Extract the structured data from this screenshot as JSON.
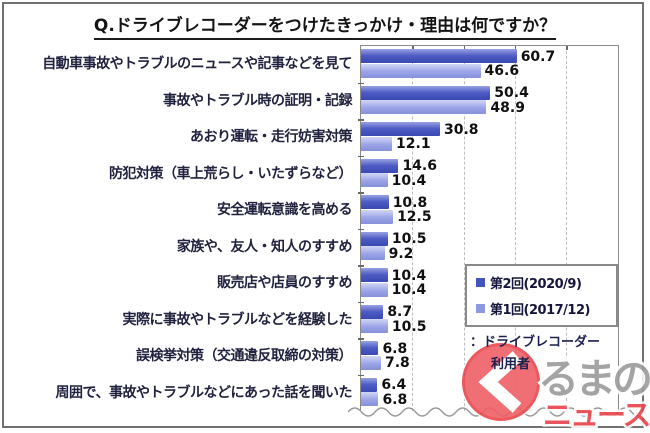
{
  "title": "Q.ドライブレコーダーをつけたきっかけ・理由は何ですか？",
  "chart_data": {
    "type": "bar",
    "orientation": "horizontal",
    "title": "Q.ドライブレコーダーをつけたきっかけ・理由は何ですか？",
    "categories": [
      "自動車事故やトラブルのニュースや記事などを見て",
      "事故やトラブル時の証明・記録",
      "あおり運転・走行妨害対策",
      "防犯対策（車上荒らし・いたずらなど）",
      "安全運転意識を高める",
      "家族や、友人・知人のすすめ",
      "販売店や店員のすすめ",
      "実際に事故やトラブルなどを経験した",
      "誤検挙対策（交通違反取締の対策）",
      "周囲で、事故やトラブルなどにあった話を聞いた"
    ],
    "series": [
      {
        "name": "第2回(2020/9)",
        "color": "#4355bd",
        "values": [
          60.7,
          50.4,
          30.8,
          14.6,
          10.8,
          10.5,
          10.4,
          8.7,
          6.8,
          6.4
        ]
      },
      {
        "name": "第1回(2017/12)",
        "color": "#8e99e0",
        "values": [
          46.6,
          48.9,
          12.1,
          10.4,
          12.5,
          9.2,
          10.4,
          10.5,
          7.8,
          6.8
        ]
      }
    ],
    "xlim": [
      0,
      100
    ],
    "gridlines": [
      20,
      40,
      60,
      80
    ],
    "grid": "dashed-vertical",
    "legend_position": "inside-right",
    "value_labels": true,
    "axis_break_wave_bottom": true
  },
  "legend": {
    "items": [
      {
        "label": "第2回(2020/9)",
        "color": "#4355bd"
      },
      {
        "label": "第1回(2017/12)",
        "color": "#8e99e0"
      }
    ]
  },
  "note": {
    "line1": "：ドライブレコーダー",
    "line2": "利用者"
  },
  "watermark": {
    "circle_char": "く",
    "text_gray": "るまの",
    "text_red": "ニュース",
    "circle_fill": "#ef6065",
    "circle_ring": "#e9484d",
    "gray_color": "#9b9b9b",
    "red_color": "#e8434a"
  }
}
